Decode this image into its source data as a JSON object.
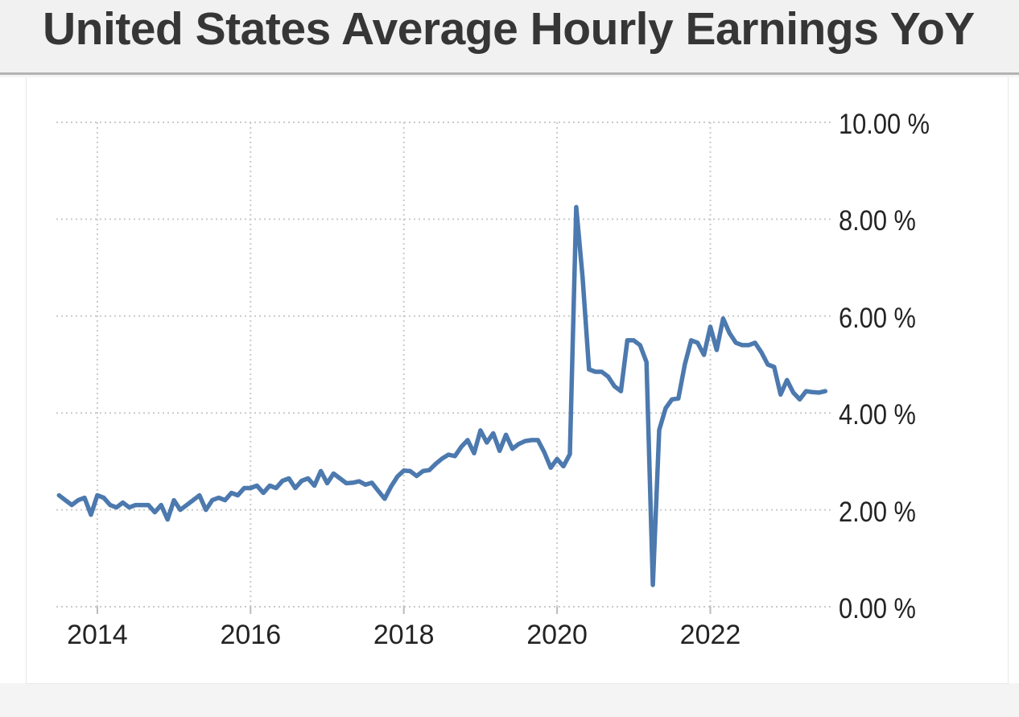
{
  "header": {
    "title": "United States Average Hourly Earnings YoY"
  },
  "chart_data": {
    "type": "line",
    "title": "United States Average Hourly Earnings YoY",
    "unit": "%",
    "grid": "dotted",
    "legend": "none",
    "line_color": "#4c79ae",
    "grid_color": "#cacaca",
    "ylim": [
      0,
      10
    ],
    "y_ticks": [
      {
        "value": 10,
        "label": "10.00 %"
      },
      {
        "value": 8,
        "label": "8.00 %"
      },
      {
        "value": 6,
        "label": "6.00 %"
      },
      {
        "value": 4,
        "label": "4.00 %"
      },
      {
        "value": 2,
        "label": "2.00 %"
      },
      {
        "value": 0,
        "label": "0.00 %"
      }
    ],
    "x_ticks": [
      {
        "year": 2014,
        "label": "2014"
      },
      {
        "year": 2016,
        "label": "2016"
      },
      {
        "year": 2018,
        "label": "2018"
      },
      {
        "year": 2020,
        "label": "2020"
      },
      {
        "year": 2022,
        "label": "2022"
      }
    ],
    "series": [
      {
        "name": "Average Hourly Earnings YoY",
        "start": "2013-07",
        "end": "2023-07",
        "frequency": "monthly",
        "values": [
          2.3,
          2.2,
          2.1,
          2.2,
          2.25,
          1.9,
          2.3,
          2.25,
          2.1,
          2.05,
          2.15,
          2.05,
          2.1,
          2.1,
          2.1,
          1.95,
          2.1,
          1.8,
          2.2,
          2.0,
          2.1,
          2.2,
          2.3,
          2.0,
          2.2,
          2.25,
          2.2,
          2.35,
          2.3,
          2.45,
          2.45,
          2.5,
          2.35,
          2.5,
          2.45,
          2.6,
          2.65,
          2.45,
          2.6,
          2.65,
          2.5,
          2.8,
          2.55,
          2.75,
          2.65,
          2.55,
          2.56,
          2.59,
          2.52,
          2.56,
          2.39,
          2.23,
          2.48,
          2.69,
          2.81,
          2.8,
          2.7,
          2.8,
          2.82,
          2.95,
          3.06,
          3.14,
          3.11,
          3.3,
          3.44,
          3.17,
          3.64,
          3.39,
          3.58,
          3.22,
          3.55,
          3.26,
          3.36,
          3.42,
          3.44,
          3.44,
          3.19,
          2.87,
          3.05,
          2.9,
          3.15,
          8.25,
          6.8,
          4.9,
          4.85,
          4.85,
          4.75,
          4.55,
          4.45,
          5.5,
          5.5,
          5.4,
          5.05,
          0.45,
          3.65,
          4.1,
          4.28,
          4.3,
          5.0,
          5.5,
          5.45,
          5.2,
          5.78,
          5.3,
          5.95,
          5.65,
          5.45,
          5.4,
          5.4,
          5.45,
          5.25,
          5.0,
          4.95,
          4.38,
          4.68,
          4.42,
          4.28,
          4.45,
          4.43,
          4.42,
          4.45
        ]
      }
    ]
  }
}
